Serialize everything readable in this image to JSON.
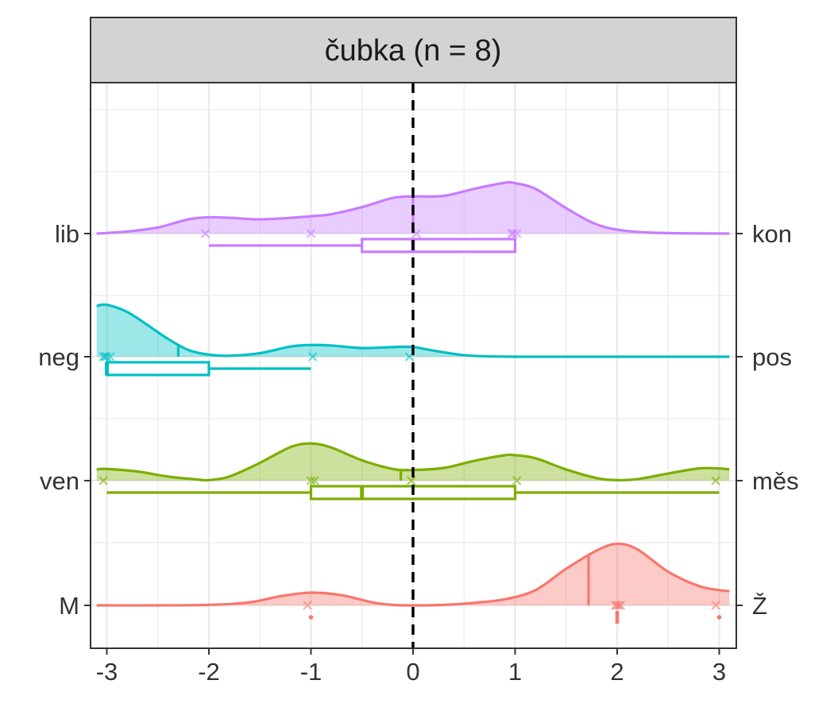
{
  "chart_data": {
    "type": "ridgeline",
    "title": "čubka (n = 8)",
    "xlim": [
      -3.1,
      3.1
    ],
    "x_ticks": [
      "-3",
      "-2",
      "-1",
      "0",
      "1",
      "2",
      "3"
    ],
    "x_tick_values": [
      -3,
      -2,
      -1,
      0,
      1,
      2,
      3
    ],
    "reference_line_x": 0,
    "grid": true,
    "series": [
      {
        "left_label": "lib",
        "right_label": "kon",
        "color": "#C77CFF",
        "points": [
          -2,
          -1,
          0,
          1,
          1,
          1
        ],
        "density_x": [
          -3.1,
          -2.8,
          -2.5,
          -2.2,
          -2.0,
          -1.8,
          -1.5,
          -1.2,
          -1.0,
          -0.8,
          -0.5,
          -0.2,
          0.0,
          0.3,
          0.6,
          0.9,
          1.0,
          1.2,
          1.5,
          1.8,
          2.1,
          2.5,
          3.1
        ],
        "density_y": [
          0.0,
          0.04,
          0.12,
          0.28,
          0.32,
          0.31,
          0.28,
          0.31,
          0.34,
          0.38,
          0.52,
          0.7,
          0.73,
          0.74,
          0.88,
          1.0,
          0.99,
          0.88,
          0.5,
          0.18,
          0.05,
          0.01,
          0.0
        ],
        "mean": 0,
        "box": {
          "whisker_low": -2,
          "q1": -0.5,
          "median": 0,
          "q3": 1,
          "whisker_high": 1
        }
      },
      {
        "left_label": "neg",
        "right_label": "pos",
        "color": "#00BFC4",
        "points": [
          -3,
          -3,
          -3,
          -3,
          -1,
          0
        ],
        "density_x": [
          -3.1,
          -3.0,
          -2.8,
          -2.6,
          -2.4,
          -2.2,
          -2.0,
          -1.8,
          -1.5,
          -1.2,
          -1.0,
          -0.8,
          -0.5,
          -0.2,
          0.0,
          0.2,
          0.5,
          0.8,
          1.2,
          2.0,
          3.1
        ],
        "density_y": [
          1.0,
          1.02,
          0.88,
          0.62,
          0.35,
          0.13,
          0.04,
          0.02,
          0.07,
          0.2,
          0.23,
          0.22,
          0.17,
          0.19,
          0.19,
          0.12,
          0.03,
          0.005,
          0.0,
          0.0,
          0.0
        ],
        "mean": -2.3,
        "box": {
          "whisker_low": -3,
          "q1": -3,
          "median": -3,
          "q3": -2,
          "whisker_high": -1
        }
      },
      {
        "left_label": "ven",
        "right_label": "měs",
        "color": "#7CAE00",
        "points": [
          -3,
          -1,
          -1,
          0,
          1,
          3
        ],
        "density_x": [
          -3.1,
          -3.0,
          -2.7,
          -2.4,
          -2.1,
          -2.0,
          -1.8,
          -1.5,
          -1.2,
          -1.0,
          -0.8,
          -0.5,
          -0.2,
          0.0,
          0.3,
          0.6,
          0.9,
          1.0,
          1.2,
          1.5,
          1.8,
          2.0,
          2.2,
          2.5,
          2.8,
          3.0,
          3.1
        ],
        "density_y": [
          0.22,
          0.23,
          0.18,
          0.08,
          0.02,
          0.01,
          0.08,
          0.35,
          0.66,
          0.73,
          0.65,
          0.4,
          0.23,
          0.21,
          0.25,
          0.39,
          0.5,
          0.5,
          0.44,
          0.22,
          0.05,
          0.01,
          0.03,
          0.14,
          0.24,
          0.24,
          0.22
        ],
        "mean": -0.12,
        "box": {
          "whisker_low": -3,
          "q1": -1,
          "median": -0.5,
          "q3": 1,
          "whisker_high": 3
        }
      },
      {
        "left_label": "M",
        "right_label": "Ž",
        "color": "#F8766D",
        "points": [
          -1,
          2,
          2,
          2,
          2,
          3
        ],
        "density_x": [
          -3.1,
          -2.5,
          -2.0,
          -1.6,
          -1.3,
          -1.0,
          -0.7,
          -0.4,
          -0.2,
          0.0,
          0.3,
          0.6,
          0.9,
          1.2,
          1.5,
          1.8,
          2.0,
          2.2,
          2.5,
          2.8,
          3.0,
          3.1
        ],
        "density_y": [
          0.0,
          0.0,
          0.01,
          0.06,
          0.18,
          0.25,
          0.2,
          0.06,
          0.01,
          0.0,
          0.01,
          0.05,
          0.12,
          0.3,
          0.72,
          1.08,
          1.21,
          1.1,
          0.66,
          0.38,
          0.3,
          0.28
        ],
        "mean": 1.72,
        "box": {
          "whisker_low": 2,
          "q1": 2,
          "median": 2,
          "q3": 2,
          "whisker_high": 2
        },
        "outliers": [
          -1,
          3
        ]
      }
    ]
  }
}
